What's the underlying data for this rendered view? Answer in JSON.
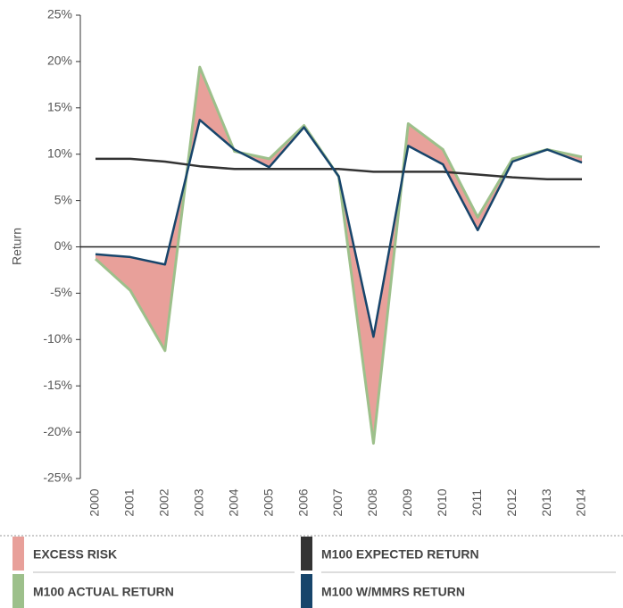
{
  "chart_data": {
    "type": "line",
    "y_label": "Return",
    "categories": [
      "2000",
      "2001",
      "2002",
      "2003",
      "2004",
      "2005",
      "2006",
      "2007",
      "2008",
      "2009",
      "2010",
      "2011",
      "2012",
      "2013",
      "2014"
    ],
    "ylim": [
      -25,
      25
    ],
    "yticks": [
      {
        "value": -25,
        "label": "-25%"
      },
      {
        "value": -20,
        "label": "-20%"
      },
      {
        "value": -15,
        "label": "-15%"
      },
      {
        "value": -10,
        "label": "-10%"
      },
      {
        "value": -5,
        "label": "-5%"
      },
      {
        "value": 0,
        "label": "0%"
      },
      {
        "value": 5,
        "label": "5%"
      },
      {
        "value": 10,
        "label": "10%"
      },
      {
        "value": 15,
        "label": "15%"
      },
      {
        "value": 20,
        "label": "20%"
      },
      {
        "value": 25,
        "label": "25%"
      }
    ],
    "excess_area": {
      "name": "EXCESS RISK",
      "color": "#e8a09a"
    },
    "series": [
      {
        "name": "M100 EXPECTED RETURN",
        "color": "#333333",
        "values": [
          9.5,
          9.5,
          9.2,
          8.7,
          8.4,
          8.4,
          8.4,
          8.4,
          8.1,
          8.1,
          8.1,
          7.8,
          7.5,
          7.3,
          7.3
        ]
      },
      {
        "name": "M100 ACTUAL RETURN",
        "color": "#9dc08b",
        "values": [
          -1.3,
          -4.7,
          -11.2,
          19.4,
          10.3,
          9.5,
          13.1,
          7.6,
          -21.2,
          13.3,
          10.5,
          3.2,
          9.5,
          10.5,
          9.7
        ]
      },
      {
        "name": "M100 W/MMRS RETURN",
        "color": "#17456b",
        "values": [
          -0.8,
          -1.1,
          -1.9,
          13.7,
          10.5,
          8.6,
          12.9,
          7.6,
          -9.7,
          10.9,
          8.9,
          1.8,
          9.2,
          10.5,
          9.1
        ]
      }
    ]
  }
}
